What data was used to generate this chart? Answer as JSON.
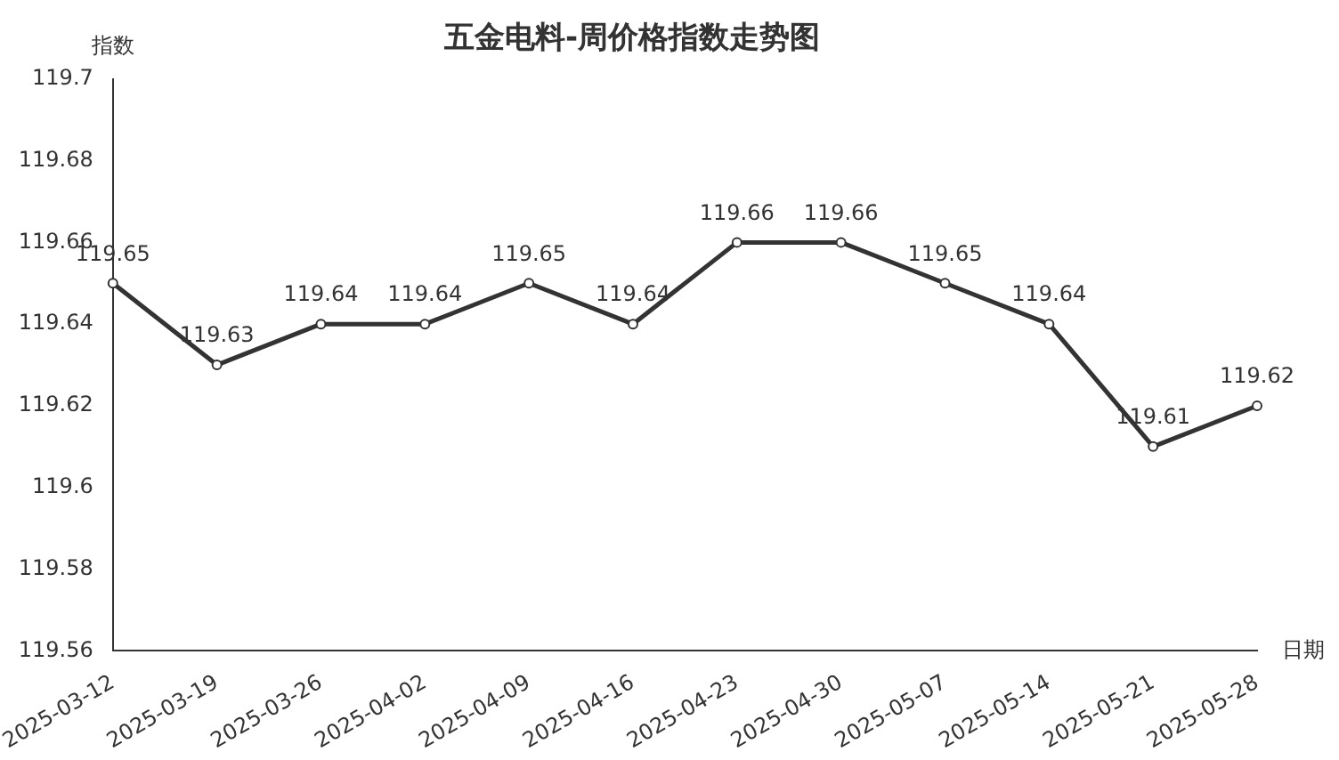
{
  "chart_data": {
    "type": "line",
    "title": "五金电料-周价格指数走势图",
    "xlabel": "日期",
    "ylabel": "指数",
    "categories": [
      "2025-03-12",
      "2025-03-19",
      "2025-03-26",
      "2025-04-02",
      "2025-04-09",
      "2025-04-16",
      "2025-04-23",
      "2025-04-30",
      "2025-05-07",
      "2025-05-14",
      "2025-05-21",
      "2025-05-28"
    ],
    "series": [
      {
        "color": "#333333",
        "values": [
          119.65,
          119.63,
          119.64,
          119.64,
          119.65,
          119.64,
          119.66,
          119.66,
          119.65,
          119.64,
          119.61,
          119.62
        ]
      }
    ],
    "ylim": [
      119.56,
      119.7
    ],
    "yticks": [
      119.56,
      119.58,
      119.6,
      119.62,
      119.64,
      119.66,
      119.68,
      119.7
    ],
    "grid": false,
    "legend": false,
    "marker": "circle",
    "line_style": "solid",
    "data_labels": true
  }
}
